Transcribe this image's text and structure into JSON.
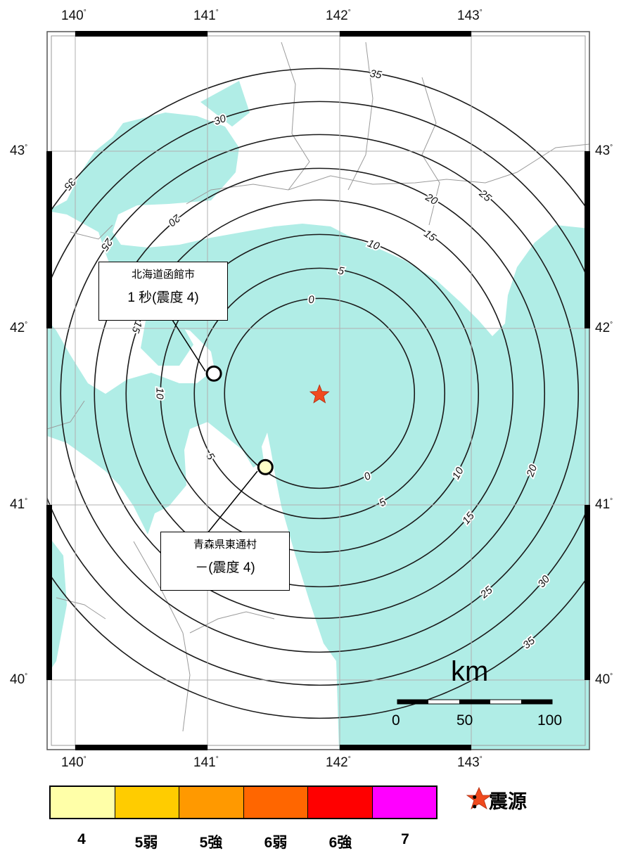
{
  "map": {
    "bounds": {
      "lon_min": 139.8,
      "lon_max": 143.8,
      "lat_min": 39.6,
      "lat_max": 43.6
    },
    "colors": {
      "sea": "#b0ede6",
      "land": "#ffffff",
      "contour": "#1a1a1a",
      "border": "#999999"
    },
    "epicenter": {
      "lon": 141.85,
      "lat": 41.62,
      "color": "#f04a1e"
    },
    "contour_labels": {
      "0": "0",
      "5": "5",
      "10": "10",
      "15": "15",
      "20": "20",
      "25": "25",
      "30": "30",
      "35": "35"
    }
  },
  "axes": {
    "lon_ticks": [
      {
        "value": 140,
        "label": "140"
      },
      {
        "value": 141,
        "label": "141"
      },
      {
        "value": 142,
        "label": "142"
      },
      {
        "value": 143,
        "label": "143"
      }
    ],
    "lat_ticks": [
      {
        "value": 43,
        "label": "43"
      },
      {
        "value": 42,
        "label": "42"
      },
      {
        "value": 41,
        "label": "41"
      },
      {
        "value": 40,
        "label": "40"
      }
    ],
    "degree_symbol": "°"
  },
  "stations": [
    {
      "name": "北海道函館市",
      "detail": "1 秒(震度 4)",
      "lon": 141.05,
      "lat": 41.74,
      "fill": "#ffffff"
    },
    {
      "name": "青森県東通村",
      "detail": "－(震度 4)",
      "lon": 141.44,
      "lat": 41.21,
      "fill": "#ffffc8"
    }
  ],
  "scale_bar": {
    "unit": "km",
    "labels": [
      "0",
      "50",
      "100"
    ]
  },
  "legend": {
    "items": [
      {
        "label": "4",
        "color": "#ffffa8"
      },
      {
        "label": "5弱",
        "color": "#ffcc00"
      },
      {
        "label": "5強",
        "color": "#ff9900"
      },
      {
        "label": "6弱",
        "color": "#ff6600"
      },
      {
        "label": "6強",
        "color": "#ff0000"
      },
      {
        "label": "7",
        "color": "#ff00ff"
      }
    ],
    "epicenter_label": "：震源"
  }
}
